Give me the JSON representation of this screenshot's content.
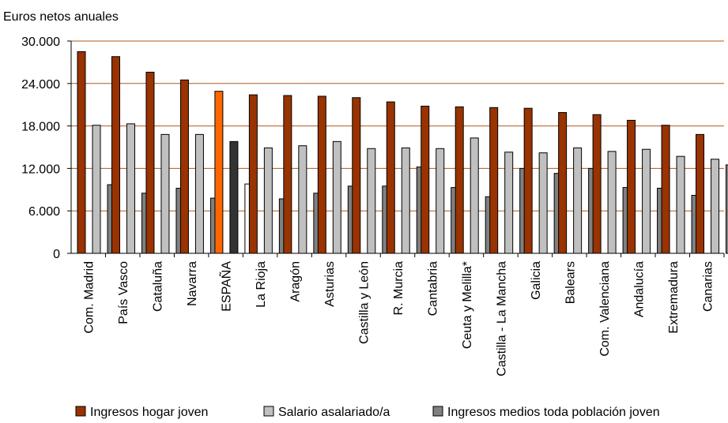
{
  "chart_data": {
    "type": "bar",
    "title": "",
    "ylabel": "Euros netos anuales",
    "xlabel": "",
    "ylim": [
      0,
      30000
    ],
    "yticks": [
      0,
      6000,
      12000,
      18000,
      24000,
      30000
    ],
    "ytick_labels": [
      "0",
      "6.000",
      "12.000",
      "18.000",
      "24.000",
      "30.000"
    ],
    "grid": true,
    "legend_position": "bottom",
    "categories": [
      "Com. Madrid",
      "País Vasco",
      "Cataluña",
      "Navarra",
      "ESPAÑA",
      "La Rioja",
      "Aragón",
      "Asturias",
      "Castilla y León",
      "R. Murcia",
      "Cantabria",
      "Ceuta y Melilla*",
      "Castilla - La Mancha",
      "Galicia",
      "Balears",
      "Com. Valenciana",
      "Andalucía",
      "Extremadura",
      "Canarias"
    ],
    "highlight_category": "ESPAÑA",
    "series": [
      {
        "name": "Ingresos hogar joven",
        "color": "#993300",
        "highlight_color": "#FF6600",
        "values": [
          28500,
          27800,
          25600,
          24500,
          22900,
          22400,
          22300,
          22200,
          22000,
          21400,
          20800,
          20700,
          20600,
          20500,
          19900,
          19600,
          18800,
          18100,
          16800
        ]
      },
      {
        "name": "Salario asalariado/a",
        "color": "#C0C0C0",
        "highlight_color": "#333333",
        "values": [
          18100,
          18300,
          16800,
          16800,
          15800,
          14900,
          15200,
          15800,
          14800,
          14900,
          14800,
          16300,
          14300,
          14200,
          14900,
          14400,
          14700,
          13700,
          13300
        ]
      },
      {
        "name": "Ingresos medios toda población joven",
        "color": "#808080",
        "highlight_color": "#FFFFFF",
        "values": [
          9700,
          8500,
          9200,
          7800,
          9800,
          7700,
          8500,
          9500,
          9500,
          12200,
          9300,
          8000,
          12000,
          11300,
          12000,
          9300,
          9200,
          8200,
          12500
        ]
      }
    ]
  }
}
